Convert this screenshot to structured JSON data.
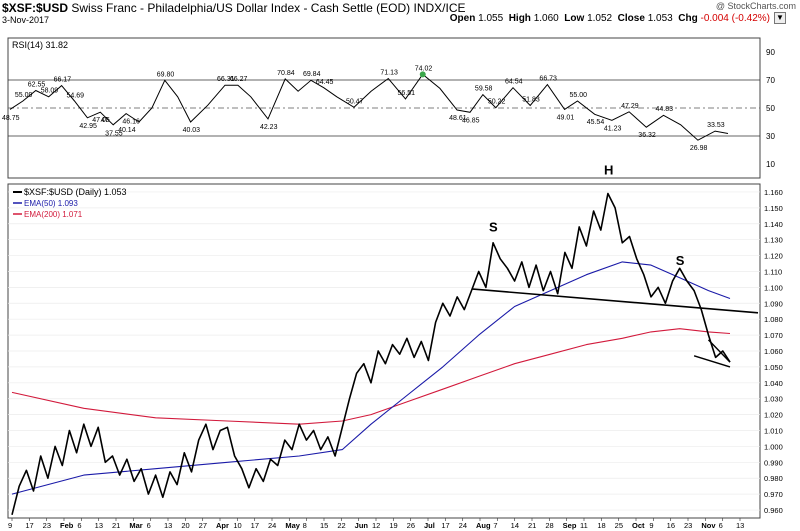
{
  "header": {
    "symbol": "$XSF:$USD",
    "description": "Swiss Franc - Philadelphia/US Dollar Index - Cash Settle (EOD)",
    "exchange": "INDX/ICE",
    "date": "3-Nov-2017",
    "copyright": "@ StockCharts.com",
    "open_label": "Open",
    "open": "1.055",
    "high_label": "High",
    "high": "1.060",
    "low_label": "Low",
    "low": "1.052",
    "close_label": "Close",
    "close": "1.053",
    "chg_label": "Chg",
    "chg": "-0.004 (-0.42%)",
    "dropdown_icon": "chevron-down-icon"
  },
  "chart_data": [
    {
      "type": "line",
      "title": "RSI(14) 31.82",
      "series": [
        {
          "name": "RSI(14)",
          "color": "#000000"
        }
      ],
      "ylim": [
        0,
        100
      ],
      "yticks": [
        "90",
        "70",
        "50",
        "30",
        "10"
      ],
      "reference_lines": [
        70,
        50,
        30
      ],
      "annotations": [
        {
          "label": "55.09",
          "value": 55.09
        },
        {
          "label": "48.75",
          "value": 48.75
        },
        {
          "label": "62.55",
          "value": 62.55
        },
        {
          "label": "58.09",
          "value": 58.09
        },
        {
          "label": "66.17",
          "value": 66.17
        },
        {
          "label": "54.69",
          "value": 54.69
        },
        {
          "label": "42.95",
          "value": 42.95
        },
        {
          "label": "47.05",
          "value": 47.05
        },
        {
          "label": "47",
          "value": 47
        },
        {
          "label": "37.55",
          "value": 37.55
        },
        {
          "label": "40.14",
          "value": 40.14
        },
        {
          "label": "46.16",
          "value": 46.16
        },
        {
          "label": "69.80",
          "value": 69.8
        },
        {
          "label": "40.03",
          "value": 40.03
        },
        {
          "label": "66.31",
          "value": 66.31
        },
        {
          "label": "66.27",
          "value": 66.27
        },
        {
          "label": "42.23",
          "value": 42.23
        },
        {
          "label": "70.84",
          "value": 70.84
        },
        {
          "label": "69.84",
          "value": 69.84
        },
        {
          "label": "64.45",
          "value": 64.45
        },
        {
          "label": "50.47",
          "value": 50.47
        },
        {
          "label": "71.13",
          "value": 71.13
        },
        {
          "label": "56.51",
          "value": 56.51
        },
        {
          "label": "74.02",
          "value": 74.02
        },
        {
          "label": "48.61",
          "value": 48.61
        },
        {
          "label": "46.85",
          "value": 46.85
        },
        {
          "label": "59.58",
          "value": 59.58
        },
        {
          "label": "50.22",
          "value": 50.22
        },
        {
          "label": "64.54",
          "value": 64.54
        },
        {
          "label": "51.83",
          "value": 51.83
        },
        {
          "label": "66.73",
          "value": 66.73
        },
        {
          "label": "49.01",
          "value": 49.01
        },
        {
          "label": "55.00",
          "value": 55.0
        },
        {
          "label": "45.54",
          "value": 45.54
        },
        {
          "label": "41.23",
          "value": 41.23
        },
        {
          "label": "47.29",
          "value": 47.29
        },
        {
          "label": "36.32",
          "value": 36.32
        },
        {
          "label": "44.83",
          "value": 44.83
        },
        {
          "label": "26.98",
          "value": 26.98
        },
        {
          "label": "33.53",
          "value": 33.53
        }
      ]
    },
    {
      "type": "line",
      "title": "$XSF:$USD (Daily) 1.053",
      "ylim": [
        0.955,
        1.165
      ],
      "yticks": [
        "1.160",
        "1.150",
        "1.140",
        "1.130",
        "1.120",
        "1.110",
        "1.100",
        "1.090",
        "1.080",
        "1.070",
        "1.060",
        "1.050",
        "1.040",
        "1.030",
        "1.020",
        "1.010",
        "1.000",
        "0.990",
        "0.980",
        "0.970",
        "0.960"
      ],
      "series": [
        {
          "name": "$XSF:$USD (Daily) 1.053",
          "color": "#000000"
        },
        {
          "name": "EMA(50) 1.093",
          "color": "#1a1aa8"
        },
        {
          "name": "EMA(200) 1.071",
          "color": "#d21a3c"
        }
      ],
      "annotations": [
        {
          "label": "S",
          "value": 1.135
        },
        {
          "label": "H",
          "value": 1.171
        },
        {
          "label": "S",
          "value": 1.114
        }
      ],
      "neckline": {
        "from_value": 1.099,
        "to_value": 1.084
      },
      "wedge": {
        "upper": [
          1.067,
          1.053
        ],
        "lower": [
          1.057,
          1.05
        ]
      }
    }
  ],
  "x_axis": {
    "tick_labels": [
      "9",
      "17",
      "23",
      "Feb",
      "6",
      "13",
      "21",
      "Mar",
      "6",
      "13",
      "20",
      "27",
      "Apr",
      "10",
      "17",
      "24",
      "May",
      "8",
      "15",
      "22",
      "Jun",
      "12",
      "19",
      "26",
      "Jul",
      "17",
      "24",
      "Aug",
      "7",
      "14",
      "21",
      "28",
      "Sep",
      "11",
      "18",
      "25",
      "Oct",
      "9",
      "16",
      "23",
      "Nov",
      "6",
      "13"
    ],
    "bold_labels": [
      "Feb",
      "Mar",
      "Apr",
      "May",
      "Jun",
      "Jul",
      "Aug",
      "Sep",
      "Oct",
      "Nov"
    ]
  }
}
